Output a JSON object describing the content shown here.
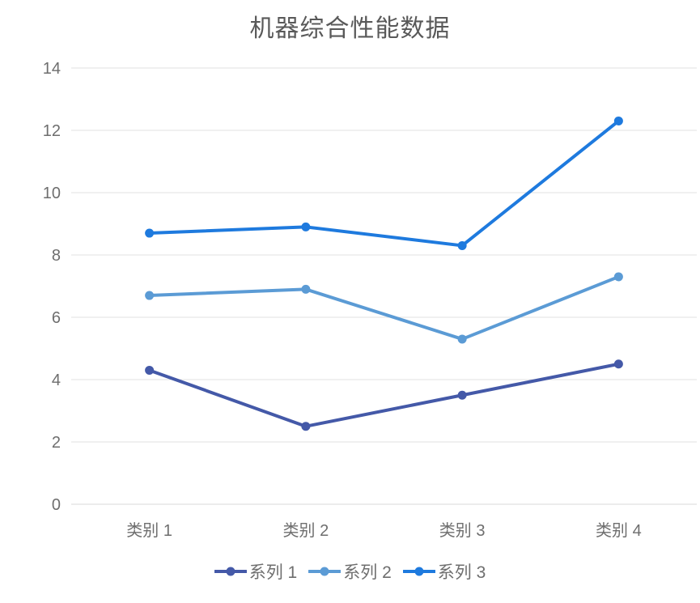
{
  "chart_data": {
    "type": "line",
    "title": "机器综合性能数据",
    "categories": [
      "类别 1",
      "类别 2",
      "类别 3",
      "类别 4"
    ],
    "series": [
      {
        "name": "系列 1",
        "values": [
          4.3,
          2.5,
          3.5,
          4.5
        ],
        "color": "#4459a8"
      },
      {
        "name": "系列 2",
        "values": [
          6.7,
          6.9,
          5.3,
          7.3
        ],
        "color": "#5b9bd5"
      },
      {
        "name": "系列 3",
        "values": [
          8.7,
          8.9,
          8.3,
          12.3
        ],
        "color": "#1e7ade"
      }
    ],
    "xlabel": "",
    "ylabel": "",
    "ylim": [
      0,
      14
    ],
    "yticks": [
      0,
      2,
      4,
      6,
      8,
      10,
      12,
      14
    ],
    "grid": "horizontal",
    "legend_position": "bottom"
  },
  "style": {
    "grid_color": "#e2e2e2",
    "baseline_color": "#d9d9d9",
    "axis_text_color": "#6e6e6e",
    "title_color": "#595959",
    "background": "#ffffff"
  }
}
